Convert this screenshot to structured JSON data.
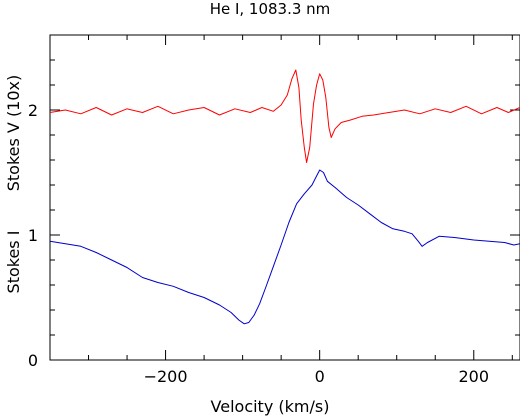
{
  "chart_data": {
    "type": "line",
    "title": "He I, 1083.3 nm",
    "xlabel": "Velocity (km/s)",
    "ylabel_bottom": "Stokes I",
    "ylabel_top": "Stokes V (10x)",
    "xlim": [
      -350,
      260
    ],
    "ylim": [
      0,
      2.6
    ],
    "x_ticks": [
      -200,
      0,
      200
    ],
    "x_tick_labels": [
      "−200",
      "0",
      "200"
    ],
    "y_ticks": [
      0,
      1,
      2
    ],
    "y_tick_labels": [
      "0",
      "1",
      "2"
    ],
    "grid": false,
    "series": [
      {
        "color": "#ff0000",
        "points": [
          [
            -350,
            1.98
          ],
          [
            -330,
            2.0
          ],
          [
            -310,
            1.97
          ],
          [
            -290,
            2.02
          ],
          [
            -270,
            1.96
          ],
          [
            -250,
            2.01
          ],
          [
            -230,
            1.98
          ],
          [
            -210,
            2.03
          ],
          [
            -190,
            1.97
          ],
          [
            -170,
            2.0
          ],
          [
            -150,
            2.02
          ],
          [
            -130,
            1.96
          ],
          [
            -110,
            2.01
          ],
          [
            -90,
            1.98
          ],
          [
            -75,
            2.02
          ],
          [
            -60,
            1.99
          ],
          [
            -50,
            2.04
          ],
          [
            -42,
            2.12
          ],
          [
            -36,
            2.25
          ],
          [
            -31,
            2.32
          ],
          [
            -27,
            2.18
          ],
          [
            -24,
            1.92
          ],
          [
            -20,
            1.7
          ],
          [
            -17,
            1.58
          ],
          [
            -13,
            1.7
          ],
          [
            -8,
            2.05
          ],
          [
            -4,
            2.2
          ],
          [
            0,
            2.29
          ],
          [
            4,
            2.24
          ],
          [
            8,
            2.1
          ],
          [
            12,
            1.86
          ],
          [
            15,
            1.78
          ],
          [
            20,
            1.85
          ],
          [
            28,
            1.9
          ],
          [
            40,
            1.92
          ],
          [
            55,
            1.95
          ],
          [
            70,
            1.96
          ],
          [
            90,
            1.98
          ],
          [
            110,
            2.0
          ],
          [
            130,
            1.97
          ],
          [
            150,
            2.01
          ],
          [
            170,
            1.98
          ],
          [
            190,
            2.03
          ],
          [
            210,
            1.97
          ],
          [
            230,
            2.02
          ],
          [
            245,
            1.98
          ],
          [
            260,
            2.02
          ]
        ]
      },
      {
        "color": "#0000cc",
        "points": [
          [
            -350,
            0.95
          ],
          [
            -330,
            0.93
          ],
          [
            -310,
            0.91
          ],
          [
            -290,
            0.86
          ],
          [
            -270,
            0.8
          ],
          [
            -250,
            0.74
          ],
          [
            -230,
            0.66
          ],
          [
            -210,
            0.62
          ],
          [
            -190,
            0.59
          ],
          [
            -170,
            0.54
          ],
          [
            -150,
            0.5
          ],
          [
            -130,
            0.44
          ],
          [
            -115,
            0.38
          ],
          [
            -105,
            0.32
          ],
          [
            -98,
            0.29
          ],
          [
            -92,
            0.3
          ],
          [
            -85,
            0.36
          ],
          [
            -78,
            0.45
          ],
          [
            -70,
            0.58
          ],
          [
            -60,
            0.75
          ],
          [
            -50,
            0.92
          ],
          [
            -40,
            1.1
          ],
          [
            -30,
            1.25
          ],
          [
            -20,
            1.33
          ],
          [
            -10,
            1.4
          ],
          [
            -5,
            1.46
          ],
          [
            0,
            1.52
          ],
          [
            5,
            1.5
          ],
          [
            10,
            1.43
          ],
          [
            20,
            1.38
          ],
          [
            35,
            1.3
          ],
          [
            50,
            1.24
          ],
          [
            65,
            1.17
          ],
          [
            80,
            1.1
          ],
          [
            95,
            1.05
          ],
          [
            110,
            1.03
          ],
          [
            120,
            1.01
          ],
          [
            128,
            0.95
          ],
          [
            133,
            0.91
          ],
          [
            140,
            0.94
          ],
          [
            155,
            0.99
          ],
          [
            175,
            0.98
          ],
          [
            200,
            0.96
          ],
          [
            220,
            0.95
          ],
          [
            240,
            0.94
          ],
          [
            252,
            0.92
          ],
          [
            260,
            0.93
          ]
        ]
      }
    ]
  }
}
